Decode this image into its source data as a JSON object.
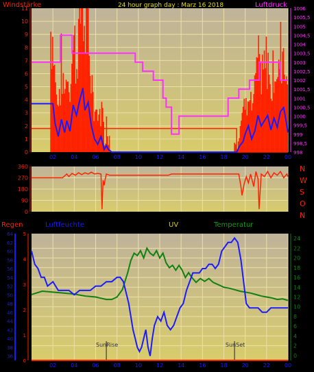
{
  "colors": {
    "background": "#000000",
    "plot_fill_top": "#bcb090",
    "plot_fill_bottom": "#d6cb70",
    "grid": "#e8d8a0",
    "wind_gust": "#ff2200",
    "wind_avg": "#1a1aff",
    "pressure": "#ff30ff",
    "wind_dir": "#ff2200",
    "rain": "#ff2200",
    "humidity": "#1a1aff",
    "uv": "#d8d000",
    "temperature": "#108010",
    "header_yellow": "#e8e000",
    "marker": "#202020"
  },
  "header": {
    "title": "24 hour graph day : Marz 16 2018"
  },
  "chart_data": [
    {
      "type": "line",
      "name": "wind-pressure",
      "title": "24 hour graph day : Marz 16 2018",
      "left_label": "Windstärke",
      "right_label": "Luftdruck",
      "x_ticks": [
        "02",
        "04",
        "06",
        "08",
        "10",
        "12",
        "14",
        "16",
        "18",
        "20",
        "22",
        "00"
      ],
      "x_range": [
        0,
        24
      ],
      "y_left_ticks": [
        "0",
        "1",
        "2",
        "3",
        "4",
        "5",
        "6",
        "7",
        "8",
        "9",
        "10",
        "11"
      ],
      "y_left_range": [
        0,
        11
      ],
      "y_right_ticks": [
        "998",
        "998,5",
        "999",
        "999,5",
        "1000",
        "1000,5",
        "1001",
        "1001,5",
        "1002",
        "1002,5",
        "1003",
        "1003,5",
        "1004",
        "1004,5",
        "1005",
        "1005,5",
        "1006"
      ],
      "y_right_range": [
        998,
        1006
      ],
      "series": {
        "gust_level": [
          [
            0,
            1.8
          ],
          [
            19.2,
            1.8
          ],
          [
            19.2,
            0
          ],
          [
            24,
            0
          ]
        ],
        "wind_avg": [
          [
            0,
            3.7
          ],
          [
            2.0,
            3.7
          ],
          [
            2.2,
            2.2
          ],
          [
            2.5,
            1.2
          ],
          [
            2.8,
            2.5
          ],
          [
            3.1,
            1.5
          ],
          [
            3.3,
            2.4
          ],
          [
            3.6,
            1.6
          ],
          [
            3.9,
            3.6
          ],
          [
            4.2,
            2.8
          ],
          [
            4.5,
            3.9
          ],
          [
            4.8,
            4.9
          ],
          [
            5.0,
            3.2
          ],
          [
            5.3,
            3.8
          ],
          [
            5.6,
            2.0
          ],
          [
            5.9,
            1.0
          ],
          [
            6.2,
            0.6
          ],
          [
            6.5,
            1.2
          ],
          [
            6.8,
            0.2
          ],
          [
            7.0,
            0.5
          ],
          [
            7.2,
            0.2
          ],
          [
            7.5,
            0
          ],
          [
            19.2,
            0
          ],
          [
            19.5,
            0.5
          ],
          [
            19.8,
            0.8
          ],
          [
            20.0,
            1.4
          ],
          [
            20.3,
            2.0
          ],
          [
            20.6,
            1.0
          ],
          [
            20.9,
            1.6
          ],
          [
            21.2,
            2.8
          ],
          [
            21.5,
            2.0
          ],
          [
            21.8,
            2.4
          ],
          [
            22.1,
            2.8
          ],
          [
            22.4,
            1.7
          ],
          [
            22.7,
            2.6
          ],
          [
            23.0,
            1.9
          ],
          [
            23.3,
            3.1
          ],
          [
            23.6,
            3.4
          ],
          [
            23.8,
            2.5
          ],
          [
            24.0,
            1.5
          ]
        ],
        "pressure": [
          [
            0,
            1003
          ],
          [
            2.7,
            1003
          ],
          [
            2.7,
            1004.5
          ],
          [
            3.8,
            1004.5
          ],
          [
            3.8,
            1003.5
          ],
          [
            9.7,
            1003.5
          ],
          [
            9.7,
            1003
          ],
          [
            10.4,
            1003
          ],
          [
            10.4,
            1002.5
          ],
          [
            11.4,
            1002.5
          ],
          [
            11.4,
            1002
          ],
          [
            12.3,
            1002
          ],
          [
            12.3,
            1001
          ],
          [
            12.6,
            1001
          ],
          [
            12.6,
            1000.5
          ],
          [
            13.1,
            1000.5
          ],
          [
            13.1,
            999
          ],
          [
            13.8,
            999
          ],
          [
            13.8,
            1000
          ],
          [
            18.4,
            1000
          ],
          [
            18.4,
            1001
          ],
          [
            19.4,
            1001
          ],
          [
            19.4,
            1001.5
          ],
          [
            20.4,
            1001.5
          ],
          [
            20.4,
            1002
          ],
          [
            21.3,
            1002
          ],
          [
            21.3,
            1003
          ],
          [
            23.3,
            1003
          ],
          [
            23.3,
            1002
          ],
          [
            24,
            1002
          ]
        ]
      }
    },
    {
      "type": "line",
      "name": "wind-direction",
      "y_ticks": [
        "0",
        "90",
        "180",
        "270",
        "360"
      ],
      "y_range": [
        0,
        360
      ],
      "x_ticks": [
        "02",
        "04",
        "06",
        "08",
        "10",
        "12",
        "14",
        "16",
        "18",
        "20",
        "22",
        "00"
      ],
      "right_labels": [
        "N",
        "W",
        "S",
        "O",
        "N"
      ],
      "series": [
        [
          0,
          270
        ],
        [
          2.9,
          270
        ],
        [
          3.1,
          285
        ],
        [
          3.3,
          300
        ],
        [
          3.5,
          280
        ],
        [
          3.8,
          305
        ],
        [
          4.1,
          290
        ],
        [
          4.4,
          310
        ],
        [
          4.7,
          295
        ],
        [
          5.0,
          310
        ],
        [
          5.3,
          300
        ],
        [
          5.6,
          315
        ],
        [
          5.9,
          300
        ],
        [
          6.2,
          305
        ],
        [
          6.5,
          300
        ],
        [
          6.6,
          20
        ],
        [
          6.7,
          250
        ],
        [
          6.8,
          210
        ],
        [
          6.9,
          260
        ],
        [
          7.0,
          300
        ],
        [
          7.3,
          290
        ],
        [
          12.8,
          290
        ],
        [
          13.1,
          300
        ],
        [
          19.4,
          300
        ],
        [
          19.6,
          200
        ],
        [
          19.7,
          130
        ],
        [
          19.9,
          220
        ],
        [
          20.1,
          280
        ],
        [
          20.3,
          230
        ],
        [
          20.5,
          300
        ],
        [
          20.8,
          200
        ],
        [
          21.0,
          320
        ],
        [
          21.2,
          260
        ],
        [
          21.3,
          20
        ],
        [
          21.5,
          300
        ],
        [
          21.8,
          280
        ],
        [
          22.1,
          320
        ],
        [
          22.4,
          270
        ],
        [
          22.7,
          310
        ],
        [
          23.0,
          290
        ],
        [
          23.3,
          320
        ],
        [
          23.6,
          270
        ],
        [
          23.9,
          300
        ],
        [
          24,
          280
        ]
      ]
    },
    {
      "type": "line",
      "name": "rain-humidity-uv-temperature",
      "labels": {
        "rain": "Regen",
        "humidity": "Luftfeuchte",
        "uv": "UV",
        "temperature": "Temperatur"
      },
      "rain_ticks": [
        "0",
        "1",
        "2",
        "3",
        "4",
        "5"
      ],
      "rain_range": [
        0,
        5
      ],
      "humidity_ticks": [
        "36",
        "38",
        "40",
        "42",
        "44",
        "46",
        "48",
        "50",
        "52",
        "54",
        "56",
        "58",
        "60",
        "62",
        "64"
      ],
      "humidity_range": [
        35,
        64
      ],
      "temperature_ticks": [
        "0",
        "2",
        "4",
        "6",
        "8",
        "10",
        "12",
        "14",
        "16",
        "18",
        "20",
        "22",
        "24"
      ],
      "temperature_range": [
        -1,
        25
      ],
      "x_ticks": [
        "02",
        "04",
        "06",
        "08",
        "10",
        "12",
        "14",
        "16",
        "18",
        "20",
        "22",
        "00"
      ],
      "annotations": [
        {
          "label": "SunRise",
          "x": 7.0
        },
        {
          "label": "SunSet",
          "x": 19.0
        }
      ],
      "series": {
        "rain": [
          [
            0,
            0
          ],
          [
            24,
            0
          ]
        ],
        "humidity": [
          [
            0,
            60
          ],
          [
            0.3,
            57
          ],
          [
            0.6,
            56
          ],
          [
            0.9,
            54
          ],
          [
            1.2,
            54
          ],
          [
            1.5,
            52
          ],
          [
            2.0,
            53
          ],
          [
            2.5,
            51
          ],
          [
            3.0,
            51
          ],
          [
            3.5,
            51
          ],
          [
            4.0,
            50
          ],
          [
            4.5,
            51
          ],
          [
            5.0,
            51
          ],
          [
            5.5,
            51
          ],
          [
            6.0,
            52
          ],
          [
            6.5,
            52
          ],
          [
            7.0,
            53
          ],
          [
            7.5,
            53
          ],
          [
            8.0,
            54
          ],
          [
            8.3,
            54
          ],
          [
            8.6,
            53
          ],
          [
            8.9,
            50
          ],
          [
            9.1,
            48
          ],
          [
            9.3,
            45
          ],
          [
            9.5,
            42
          ],
          [
            9.7,
            40
          ],
          [
            9.9,
            38
          ],
          [
            10.1,
            37
          ],
          [
            10.3,
            38
          ],
          [
            10.5,
            40
          ],
          [
            10.7,
            42
          ],
          [
            10.9,
            38
          ],
          [
            11.1,
            36
          ],
          [
            11.3,
            40
          ],
          [
            11.5,
            43
          ],
          [
            11.8,
            45
          ],
          [
            12.1,
            44
          ],
          [
            12.4,
            46
          ],
          [
            12.7,
            43
          ],
          [
            13.0,
            42
          ],
          [
            13.3,
            43
          ],
          [
            13.6,
            45
          ],
          [
            13.9,
            47
          ],
          [
            14.2,
            48
          ],
          [
            14.5,
            51
          ],
          [
            14.8,
            53
          ],
          [
            15.1,
            55
          ],
          [
            15.4,
            55
          ],
          [
            15.7,
            55
          ],
          [
            16.0,
            56
          ],
          [
            16.3,
            56
          ],
          [
            16.6,
            57
          ],
          [
            16.9,
            57
          ],
          [
            17.2,
            56
          ],
          [
            17.5,
            57
          ],
          [
            17.8,
            60
          ],
          [
            18.1,
            61
          ],
          [
            18.4,
            62
          ],
          [
            18.7,
            62
          ],
          [
            19.0,
            63
          ],
          [
            19.3,
            62
          ],
          [
            19.6,
            58
          ],
          [
            19.9,
            52
          ],
          [
            20.1,
            48
          ],
          [
            20.4,
            47
          ],
          [
            20.8,
            47
          ],
          [
            21.2,
            47
          ],
          [
            21.6,
            46
          ],
          [
            22.0,
            46
          ],
          [
            22.4,
            47
          ],
          [
            22.8,
            47
          ],
          [
            23.2,
            47
          ],
          [
            23.6,
            47
          ],
          [
            24.0,
            47
          ]
        ],
        "temperature": [
          [
            0,
            12.5
          ],
          [
            1.0,
            13.2
          ],
          [
            2.0,
            13.0
          ],
          [
            3.0,
            12.8
          ],
          [
            4.0,
            12.6
          ],
          [
            5.0,
            12.2
          ],
          [
            6.0,
            12.0
          ],
          [
            7.0,
            11.5
          ],
          [
            7.5,
            11.5
          ],
          [
            8.0,
            12.0
          ],
          [
            8.5,
            13.5
          ],
          [
            9.0,
            17.0
          ],
          [
            9.3,
            19.5
          ],
          [
            9.6,
            21.0
          ],
          [
            9.9,
            20.5
          ],
          [
            10.2,
            21.5
          ],
          [
            10.5,
            20.0
          ],
          [
            10.8,
            22.0
          ],
          [
            11.1,
            21.0
          ],
          [
            11.4,
            20.5
          ],
          [
            11.7,
            21.5
          ],
          [
            12.0,
            20.0
          ],
          [
            12.3,
            21.0
          ],
          [
            12.6,
            19.0
          ],
          [
            12.9,
            18.0
          ],
          [
            13.2,
            18.5
          ],
          [
            13.5,
            17.5
          ],
          [
            13.8,
            18.5
          ],
          [
            14.1,
            17.5
          ],
          [
            14.4,
            16.0
          ],
          [
            14.7,
            17.0
          ],
          [
            15.0,
            16.0
          ],
          [
            15.4,
            15.0
          ],
          [
            15.8,
            15.8
          ],
          [
            16.2,
            15.2
          ],
          [
            16.6,
            15.8
          ],
          [
            17.0,
            15.0
          ],
          [
            17.5,
            14.5
          ],
          [
            18.0,
            14.0
          ],
          [
            18.5,
            13.8
          ],
          [
            19.0,
            13.5
          ],
          [
            19.5,
            13.2
          ],
          [
            20.0,
            13.0
          ],
          [
            20.5,
            12.8
          ],
          [
            21.0,
            12.5
          ],
          [
            21.5,
            12.2
          ],
          [
            22.0,
            12.0
          ],
          [
            22.5,
            11.8
          ],
          [
            23.0,
            11.5
          ],
          [
            23.5,
            11.6
          ],
          [
            24.0,
            11.3
          ]
        ]
      }
    }
  ]
}
